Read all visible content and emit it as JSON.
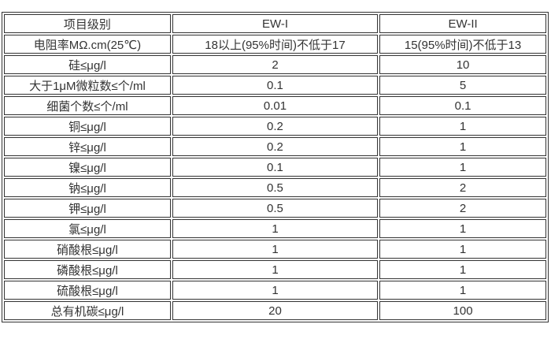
{
  "chart_data": {
    "type": "table",
    "title": "",
    "columns": [
      "项目级别",
      "EW-I",
      "EW-II"
    ],
    "rows": [
      [
        "电阻率MΩ.cm(25℃)",
        "18以上(95%时间)不低于17",
        "15(95%时间)不低于13"
      ],
      [
        "硅≤μg/l",
        "2",
        "10"
      ],
      [
        "大于1μM微粒数≤个/ml",
        "0.1",
        "5"
      ],
      [
        "细菌个数≤个/ml",
        "0.01",
        "0.1"
      ],
      [
        "铜≤μg/l",
        "0.2",
        "1"
      ],
      [
        "锌≤μg/l",
        "0.2",
        "1"
      ],
      [
        "镍≤μg/l",
        "0.1",
        "1"
      ],
      [
        "钠≤μg/l",
        "0.5",
        "2"
      ],
      [
        "钾≤μg/l",
        "0.5",
        "2"
      ],
      [
        "氯≤μg/l",
        "1",
        "1"
      ],
      [
        "硝酸根≤μg/l",
        "1",
        "1"
      ],
      [
        "磷酸根≤μg/l",
        "1",
        "1"
      ],
      [
        "硫酸根≤μg/l",
        "1",
        "1"
      ],
      [
        "总有机碳≤μg/l",
        "20",
        "100"
      ]
    ],
    "colors": {
      "border": "#333333",
      "text": "#333333",
      "background": "#ffffff"
    }
  }
}
